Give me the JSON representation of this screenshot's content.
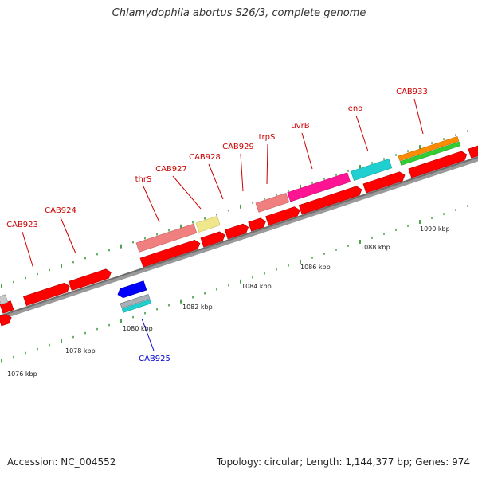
{
  "title": "Chlamydophila abortus S26/3, complete genome",
  "footer": {
    "accession": "Accession: NC_004552",
    "topology": "Topology: circular; Length: 1,144,377 bp; Genes: 974"
  },
  "colors": {
    "default_gene": "#ff0000",
    "label_red": "#cc0000",
    "label_blue": "#0000cc",
    "backbone": "#808080",
    "tick": "#008000"
  },
  "scale_labels": [
    "1076 kbp",
    "1078 kbp",
    "1080 kbp",
    "1082 kbp",
    "1084 kbp",
    "1086 kbp",
    "1088 kbp",
    "1090 kbp"
  ],
  "gene_labels": [
    {
      "text": "CAB923",
      "color": "#cc0000"
    },
    {
      "text": "CAB924",
      "color": "#cc0000"
    },
    {
      "text": "thrS",
      "color": "#cc0000"
    },
    {
      "text": "CAB927",
      "color": "#cc0000"
    },
    {
      "text": "CAB928",
      "color": "#cc0000"
    },
    {
      "text": "CAB929",
      "color": "#cc0000"
    },
    {
      "text": "trpS",
      "color": "#cc0000"
    },
    {
      "text": "uvrB",
      "color": "#cc0000"
    },
    {
      "text": "eno",
      "color": "#cc0000"
    },
    {
      "text": "CAB933",
      "color": "#cc0000"
    },
    {
      "text": "CAB925",
      "color": "#0000cc"
    }
  ]
}
